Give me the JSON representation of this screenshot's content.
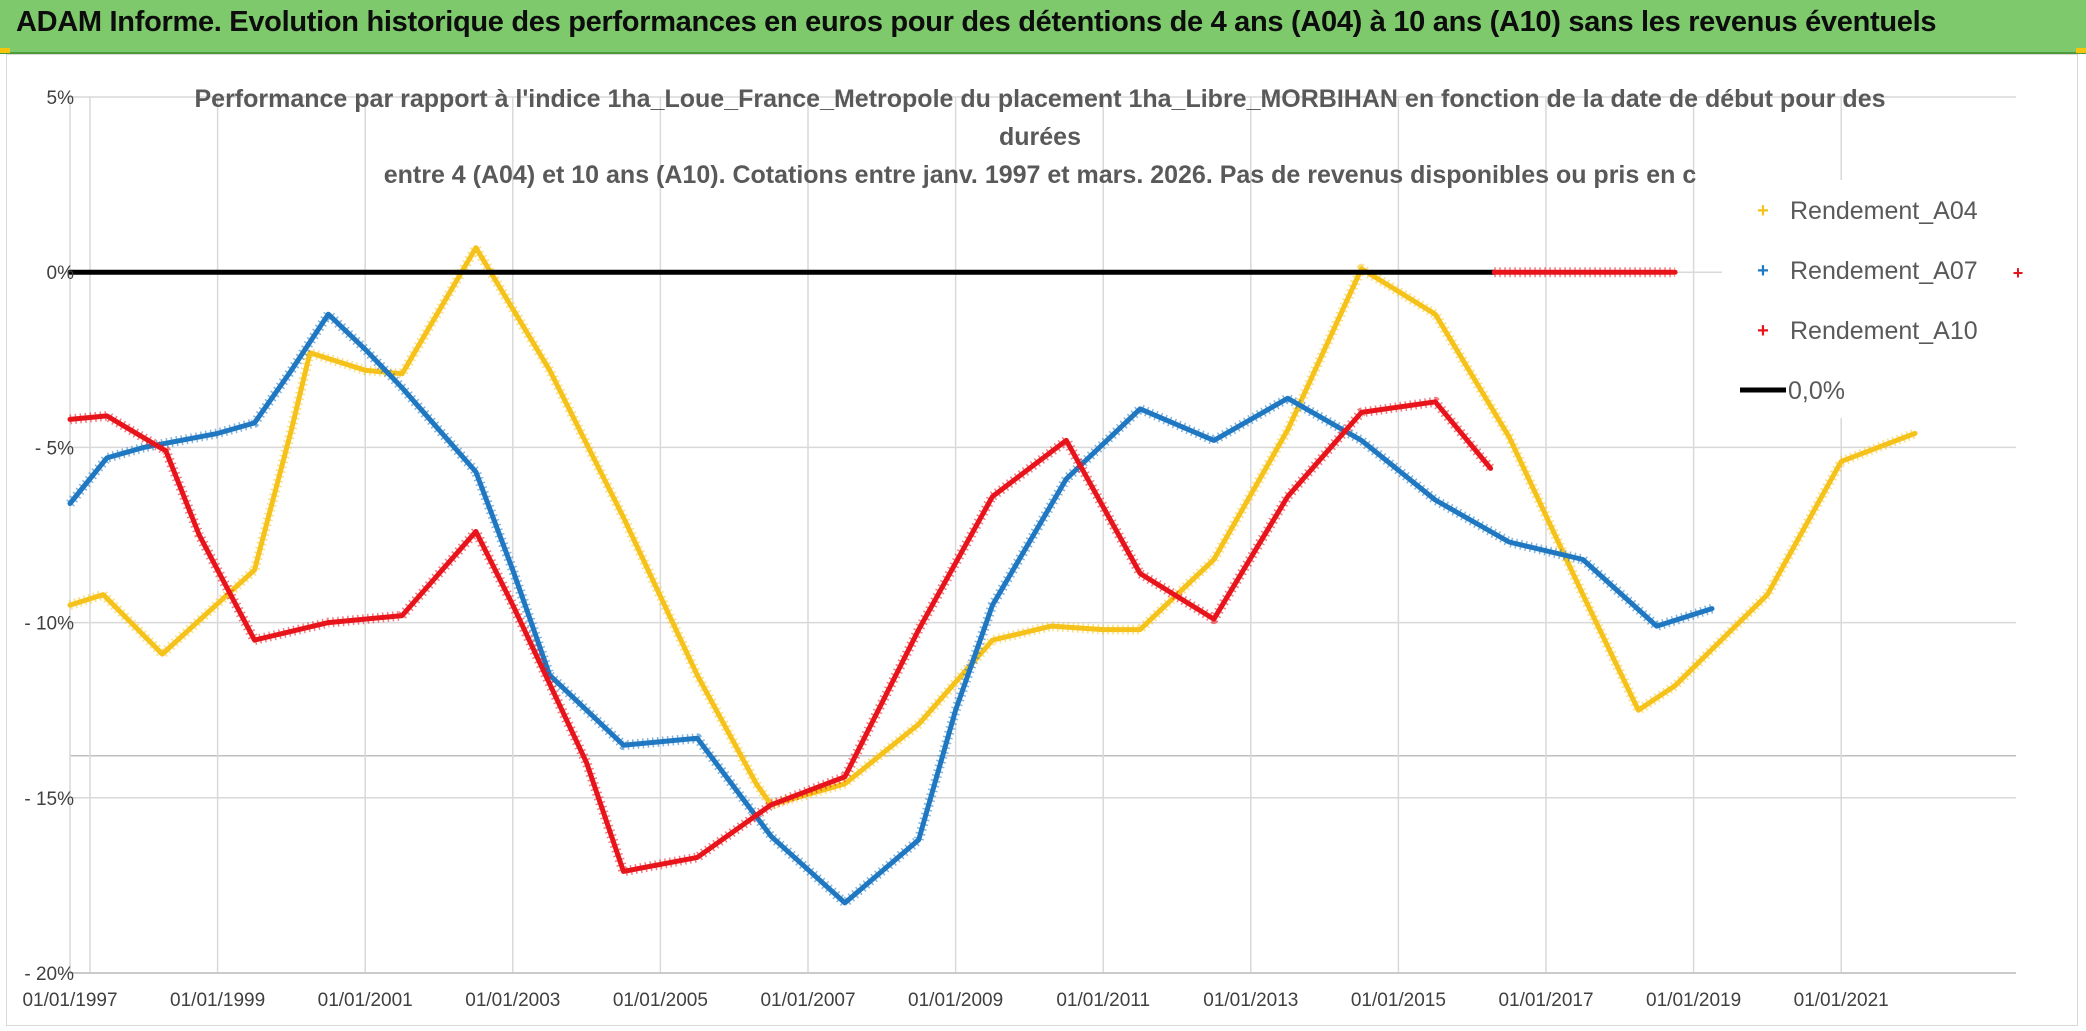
{
  "banner": {
    "title": "ADAM Informe. Evolution historique des performances en euros pour des détentions de 4 ans (A04) à 10 ans (A10) sans les revenus éventuels"
  },
  "colors": {
    "banner": "#7dc96b",
    "A04": "#f5c21b",
    "A07": "#1f78c1",
    "A10": "#e8141c",
    "zero": "#000000"
  },
  "chart_data": {
    "type": "line",
    "title_lines": [
      "Performance par rapport à l'indice 1ha_Loue_France_Metropole  du placement 1ha_Libre_MORBIHAN en fonction de la date de début pour des",
      "durées",
      "entre 4 (A04) et 10 ans (A10). Cotations entre janv. 1997 et mars. 2026. Pas de revenus disponibles ou pris en c"
    ],
    "x_tick_labels": [
      "01/01/1997",
      "01/01/1999",
      "01/01/2001",
      "01/01/2003",
      "01/01/2005",
      "01/01/2007",
      "01/01/2009",
      "01/01/2011",
      "01/01/2013",
      "01/01/2015",
      "01/01/2017",
      "01/01/2019",
      "01/01/2021"
    ],
    "x_tick_years": [
      1997,
      1999,
      2001,
      2003,
      2005,
      2007,
      2009,
      2011,
      2013,
      2015,
      2017,
      2019,
      2021
    ],
    "xlim": [
      1997,
      2023.2
    ],
    "y_tick_labels": [
      "5%",
      "0%",
      "- 5%",
      "- 10%",
      "- 15%",
      "- 20%"
    ],
    "y_tick_values": [
      5,
      0,
      -5,
      -10,
      -15,
      -20
    ],
    "ylim": [
      -20,
      5
    ],
    "ylabel": "",
    "xlabel": "",
    "grid": true,
    "legend_position": "top-right",
    "series": [
      {
        "name": "Rendement_A04",
        "key": "A04",
        "points": [
          [
            1997.0,
            -9.5
          ],
          [
            1997.45,
            -9.2
          ],
          [
            1998.25,
            -10.9
          ],
          [
            1999.5,
            -8.5
          ],
          [
            2000.0,
            -4.5
          ],
          [
            2000.25,
            -2.3
          ],
          [
            2001.0,
            -2.8
          ],
          [
            2001.5,
            -2.9
          ],
          [
            2002.5,
            0.7
          ],
          [
            2003.5,
            -2.8
          ],
          [
            2004.5,
            -7.0
          ],
          [
            2005.5,
            -11.5
          ],
          [
            2006.3,
            -14.6
          ],
          [
            2006.5,
            -15.2
          ],
          [
            2007.5,
            -14.6
          ],
          [
            2008.5,
            -12.9
          ],
          [
            2009.5,
            -10.5
          ],
          [
            2010.3,
            -10.1
          ],
          [
            2011.0,
            -10.2
          ],
          [
            2011.5,
            -10.2
          ],
          [
            2012.5,
            -8.2
          ],
          [
            2013.5,
            -4.5
          ],
          [
            2014.5,
            0.1
          ],
          [
            2015.5,
            -1.2
          ],
          [
            2016.5,
            -4.7
          ],
          [
            2017.5,
            -9.2
          ],
          [
            2018.25,
            -12.5
          ],
          [
            2018.75,
            -11.8
          ],
          [
            2020.0,
            -9.2
          ],
          [
            2021.0,
            -5.4
          ],
          [
            2022.0,
            -4.6
          ]
        ]
      },
      {
        "name": "Rendement_A07",
        "key": "A07",
        "points": [
          [
            1997.0,
            -6.6
          ],
          [
            1997.5,
            -5.3
          ],
          [
            1998.0,
            -5.0
          ],
          [
            1999.0,
            -4.6
          ],
          [
            1999.5,
            -4.3
          ],
          [
            2000.0,
            -2.8
          ],
          [
            2000.5,
            -1.2
          ],
          [
            2001.0,
            -2.2
          ],
          [
            2001.5,
            -3.3
          ],
          [
            2002.5,
            -5.7
          ],
          [
            2003.0,
            -8.5
          ],
          [
            2003.5,
            -11.5
          ],
          [
            2004.5,
            -13.5
          ],
          [
            2005.5,
            -13.3
          ],
          [
            2006.5,
            -16.1
          ],
          [
            2007.5,
            -18.0
          ],
          [
            2008.5,
            -16.2
          ],
          [
            2009.0,
            -12.5
          ],
          [
            2009.5,
            -9.5
          ],
          [
            2010.5,
            -5.9
          ],
          [
            2011.5,
            -3.9
          ],
          [
            2012.5,
            -4.8
          ],
          [
            2013.5,
            -3.6
          ],
          [
            2014.5,
            -4.8
          ],
          [
            2015.5,
            -6.5
          ],
          [
            2016.5,
            -7.7
          ],
          [
            2017.5,
            -8.2
          ],
          [
            2018.5,
            -10.1
          ],
          [
            2019.25,
            -9.6
          ]
        ]
      },
      {
        "name": "Rendement_A10",
        "key": "A10",
        "points": [
          [
            1997.0,
            -4.2
          ],
          [
            1997.5,
            -4.1
          ],
          [
            1998.3,
            -5.1
          ],
          [
            1998.75,
            -7.5
          ],
          [
            1999.5,
            -10.5
          ],
          [
            2000.5,
            -10.0
          ],
          [
            2001.5,
            -9.8
          ],
          [
            2002.5,
            -7.4
          ],
          [
            2003.0,
            -9.5
          ],
          [
            2004.0,
            -14.0
          ],
          [
            2004.5,
            -17.1
          ],
          [
            2005.5,
            -16.7
          ],
          [
            2006.5,
            -15.2
          ],
          [
            2007.5,
            -14.4
          ],
          [
            2008.5,
            -10.2
          ],
          [
            2009.5,
            -6.4
          ],
          [
            2010.5,
            -4.8
          ],
          [
            2011.5,
            -8.6
          ],
          [
            2012.5,
            -9.9
          ],
          [
            2013.5,
            -6.4
          ],
          [
            2014.5,
            -4.0
          ],
          [
            2015.5,
            -3.7
          ],
          [
            2016.25,
            -5.6
          ]
        ]
      },
      {
        "name": "0,0%",
        "key": "zero",
        "points": [
          [
            1997.0,
            0.0
          ],
          [
            2016.3,
            0.0
          ]
        ]
      },
      {
        "name": "A10 zero segment",
        "key": "A10",
        "points": [
          [
            2016.3,
            0.0
          ],
          [
            2018.75,
            0.0
          ]
        ]
      }
    ],
    "legend": [
      {
        "label": "Rendement_A04",
        "key": "A04",
        "marker": "+"
      },
      {
        "label": "Rendement_A07",
        "key": "A07",
        "marker": "+"
      },
      {
        "label": "Rendement_A10",
        "key": "A10",
        "marker": "+"
      },
      {
        "label": "0,0%",
        "key": "zero",
        "marker": "line"
      }
    ]
  }
}
